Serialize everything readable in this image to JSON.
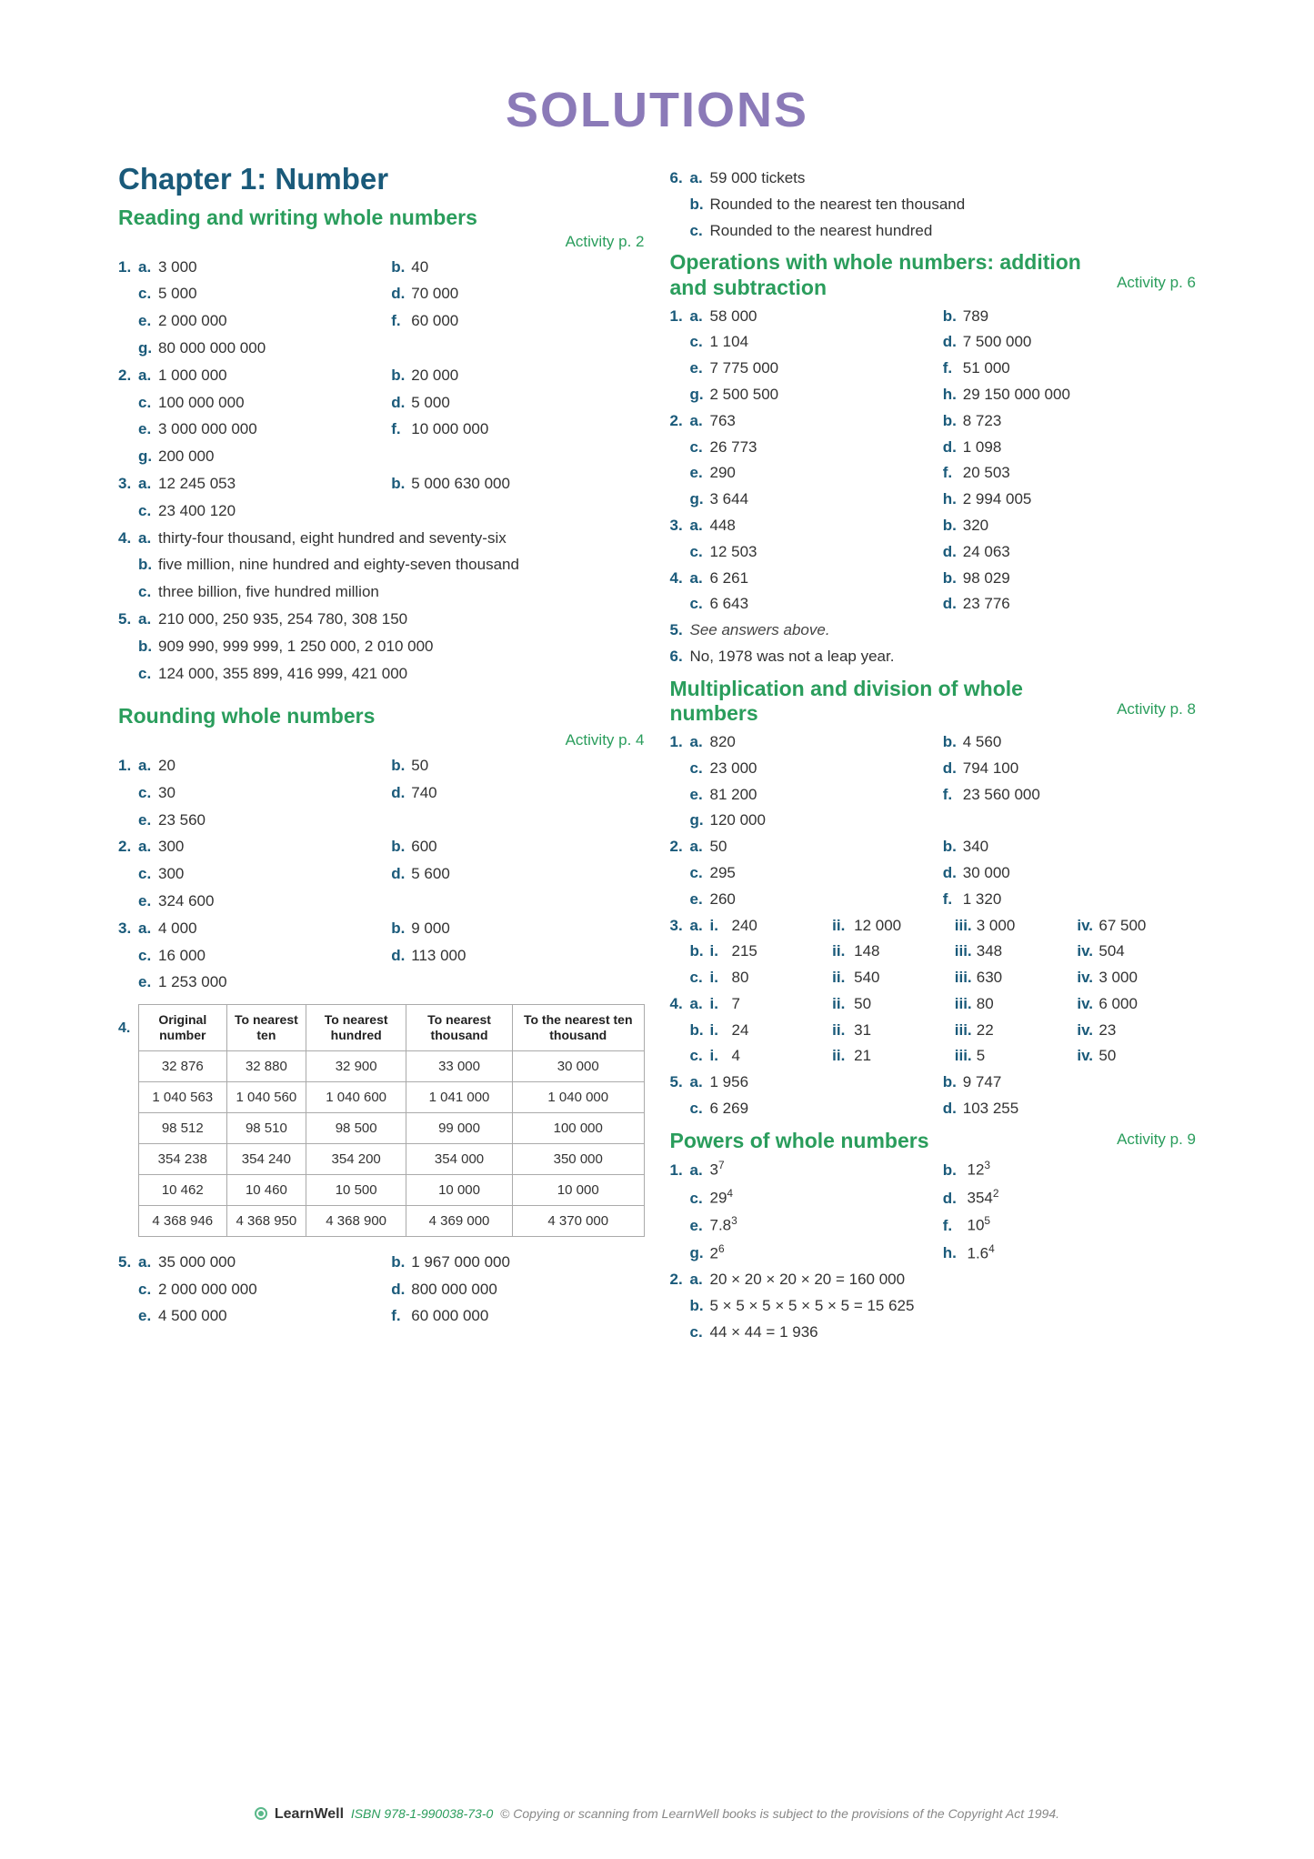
{
  "title": "SOLUTIONS",
  "chapter": "Chapter 1: Number",
  "footer": {
    "brand": "LearnWell",
    "isbn": "ISBN 978-1-990038-73-0",
    "copy": "© Copying or scanning from LearnWell books is subject to the provisions of the Copyright Act 1994."
  },
  "colors": {
    "title": "#8b7ab8",
    "chapter": "#1a5a7a",
    "section": "#2a9d5c",
    "letter": "#1a5a7a",
    "text": "#333333",
    "border": "#aaaaaa"
  },
  "left": {
    "s1": {
      "title": "Reading and writing whole numbers",
      "ref": "Activity p. 2",
      "q1": {
        "a": "3 000",
        "b": "40",
        "c": "5 000",
        "d": "70 000",
        "e": "2 000 000",
        "f": "60 000",
        "g": "80 000 000 000"
      },
      "q2": {
        "a": "1 000 000",
        "b": "20 000",
        "c": "100 000 000",
        "d": "5 000",
        "e": "3 000 000 000",
        "f": "10 000 000",
        "g": "200 000"
      },
      "q3": {
        "a": "12 245 053",
        "b": "5 000 630 000",
        "c": "23 400 120"
      },
      "q4": {
        "a": "thirty-four thousand, eight hundred and seventy-six",
        "b": "five million, nine hundred and eighty-seven thousand",
        "c": "three billion, five hundred million"
      },
      "q5": {
        "a": "210 000, 250 935, 254 780, 308 150",
        "b": "909 990, 999 999, 1 250 000, 2 010 000",
        "c": "124 000, 355 899, 416 999, 421 000"
      }
    },
    "s2": {
      "title": "Rounding whole numbers",
      "ref": "Activity p. 4",
      "q1": {
        "a": "20",
        "b": "50",
        "c": "30",
        "d": "740",
        "e": "23 560"
      },
      "q2": {
        "a": "300",
        "b": "600",
        "c": "300",
        "d": "5 600",
        "e": "324 600"
      },
      "q3": {
        "a": "4 000",
        "b": "9 000",
        "c": "16 000",
        "d": "113 000",
        "e": "1 253 000"
      },
      "q4": {
        "headers": [
          "Original number",
          "To nearest ten",
          "To nearest hundred",
          "To nearest thousand",
          "To the nearest ten thousand"
        ],
        "rows": [
          [
            "32 876",
            "32 880",
            "32 900",
            "33 000",
            "30 000"
          ],
          [
            "1 040 563",
            "1 040 560",
            "1 040 600",
            "1 041 000",
            "1 040 000"
          ],
          [
            "98 512",
            "98 510",
            "98 500",
            "99 000",
            "100 000"
          ],
          [
            "354 238",
            "354 240",
            "354 200",
            "354 000",
            "350 000"
          ],
          [
            "10 462",
            "10 460",
            "10 500",
            "10 000",
            "10 000"
          ],
          [
            "4 368 946",
            "4 368 950",
            "4 368 900",
            "4 369 000",
            "4 370 000"
          ]
        ]
      },
      "q5": {
        "a": "35 000 000",
        "b": "1 967 000 000",
        "c": "2 000 000 000",
        "d": "800 000 000",
        "e": "4 500 000",
        "f": "60 000 000"
      }
    }
  },
  "right": {
    "s0": {
      "q6": {
        "a": "59 000 tickets",
        "b": "Rounded to the nearest ten thousand",
        "c": "Rounded to the nearest hundred"
      }
    },
    "s1": {
      "title": "Operations with whole numbers: addition and subtraction",
      "ref": "Activity p. 6",
      "q1": {
        "a": "58 000",
        "b": "789",
        "c": "1 104",
        "d": "7 500 000",
        "e": "7 775 000",
        "f": "51 000",
        "g": "2 500 500",
        "h": "29 150 000 000"
      },
      "q2": {
        "a": "763",
        "b": "8 723",
        "c": "26 773",
        "d": "1 098",
        "e": "290",
        "f": "20 503",
        "g": "3 644",
        "h": "2 994 005"
      },
      "q3": {
        "a": "448",
        "b": "320",
        "c": "12 503",
        "d": "24 063"
      },
      "q4": {
        "a": "6 261",
        "b": "98 029",
        "c": "6 643",
        "d": "23 776"
      },
      "q5": "See answers above.",
      "q6": "No, 1978 was not a leap year."
    },
    "s2": {
      "title": "Multiplication and division of whole numbers",
      "ref": "Activity p. 8",
      "q1": {
        "a": "820",
        "b": "4 560",
        "c": "23 000",
        "d": "794 100",
        "e": "81 200",
        "f": "23 560 000",
        "g": "120 000"
      },
      "q2": {
        "a": "50",
        "b": "340",
        "c": "295",
        "d": "30 000",
        "e": "260",
        "f": "1 320"
      },
      "q3": {
        "a": {
          "i": "240",
          "ii": "12 000",
          "iii": "3 000",
          "iv": "67 500"
        },
        "b": {
          "i": "215",
          "ii": "148",
          "iii": "348",
          "iv": "504"
        },
        "c": {
          "i": "80",
          "ii": "540",
          "iii": "630",
          "iv": "3 000"
        }
      },
      "q4": {
        "a": {
          "i": "7",
          "ii": "50",
          "iii": "80",
          "iv": "6 000"
        },
        "b": {
          "i": "24",
          "ii": "31",
          "iii": "22",
          "iv": "23"
        },
        "c": {
          "i": "4",
          "ii": "21",
          "iii": "5",
          "iv": "50"
        }
      },
      "q5": {
        "a": "1 956",
        "b": "9 747",
        "c": "6 269",
        "d": "103 255"
      }
    },
    "s3": {
      "title": "Powers of whole numbers",
      "ref": "Activity p. 9",
      "q1": {
        "a": [
          "3",
          "7"
        ],
        "b": [
          "12",
          "3"
        ],
        "c": [
          "29",
          "4"
        ],
        "d": [
          "354",
          "2"
        ],
        "e": [
          "7.8",
          "3"
        ],
        "f": [
          "10",
          "5"
        ],
        "g": [
          "2",
          "6"
        ],
        "h": [
          "1.6",
          "4"
        ]
      },
      "q2": {
        "a": "20 × 20 × 20 × 20 = 160 000",
        "b": "5 × 5 × 5 × 5 × 5 × 5 = 15 625",
        "c": "44 × 44 = 1 936"
      }
    }
  }
}
